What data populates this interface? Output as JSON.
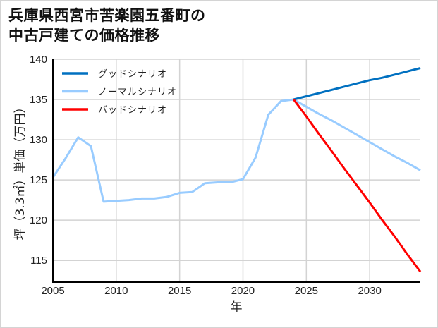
{
  "title_lines": [
    "兵庫県西宮市苦楽園五番町の",
    "中古戸建ての価格推移"
  ],
  "colors": {
    "good": "#0070C0",
    "normal": "#99CCFF",
    "bad": "#FF0000",
    "grid": "#d3d3d3",
    "axis": "#000000"
  },
  "chart_data": {
    "type": "line",
    "title": "兵庫県西宮市苦楽園五番町の中古戸建ての価格推移",
    "xlabel": "年",
    "ylabel": "坪（3.3㎡）単価（万円）",
    "xlim": [
      2005,
      2034
    ],
    "ylim": [
      112.3,
      140
    ],
    "xticks": [
      2005,
      2010,
      2015,
      2020,
      2025,
      2030
    ],
    "yticks": [
      115,
      120,
      125,
      130,
      135,
      140
    ],
    "grid": true,
    "legend_position": "upper left",
    "series": [
      {
        "name": "グッドシナリオ",
        "color": "#0070C0",
        "x": [
          2024,
          2025,
          2026,
          2027,
          2028,
          2029,
          2030,
          2031,
          2032,
          2033,
          2034
        ],
        "values": [
          135.0,
          135.4,
          135.8,
          136.2,
          136.6,
          137.0,
          137.4,
          137.7,
          138.1,
          138.5,
          138.9
        ]
      },
      {
        "name": "ノーマルシナリオ",
        "color": "#99CCFF",
        "x": [
          2005,
          2006,
          2007,
          2008,
          2009,
          2010,
          2011,
          2012,
          2013,
          2014,
          2015,
          2016,
          2017,
          2018,
          2019,
          2020,
          2021,
          2022,
          2023,
          2024,
          2025,
          2026,
          2027,
          2028,
          2029,
          2030,
          2031,
          2032,
          2033,
          2034
        ],
        "values": [
          125.3,
          127.7,
          130.3,
          129.2,
          122.3,
          122.4,
          122.5,
          122.7,
          122.7,
          122.9,
          123.4,
          123.5,
          124.6,
          124.7,
          124.7,
          125.1,
          127.8,
          133.1,
          134.8,
          135.0,
          134.1,
          133.2,
          132.4,
          131.5,
          130.6,
          129.7,
          128.8,
          127.9,
          127.1,
          126.2
        ]
      },
      {
        "name": "バッドシナリオ",
        "color": "#FF0000",
        "x": [
          2024,
          2025,
          2026,
          2027,
          2028,
          2029,
          2030,
          2031,
          2032,
          2033,
          2034
        ],
        "values": [
          135.0,
          132.9,
          130.7,
          128.6,
          126.4,
          124.3,
          122.2,
          120.0,
          117.9,
          115.7,
          113.6
        ]
      }
    ]
  }
}
